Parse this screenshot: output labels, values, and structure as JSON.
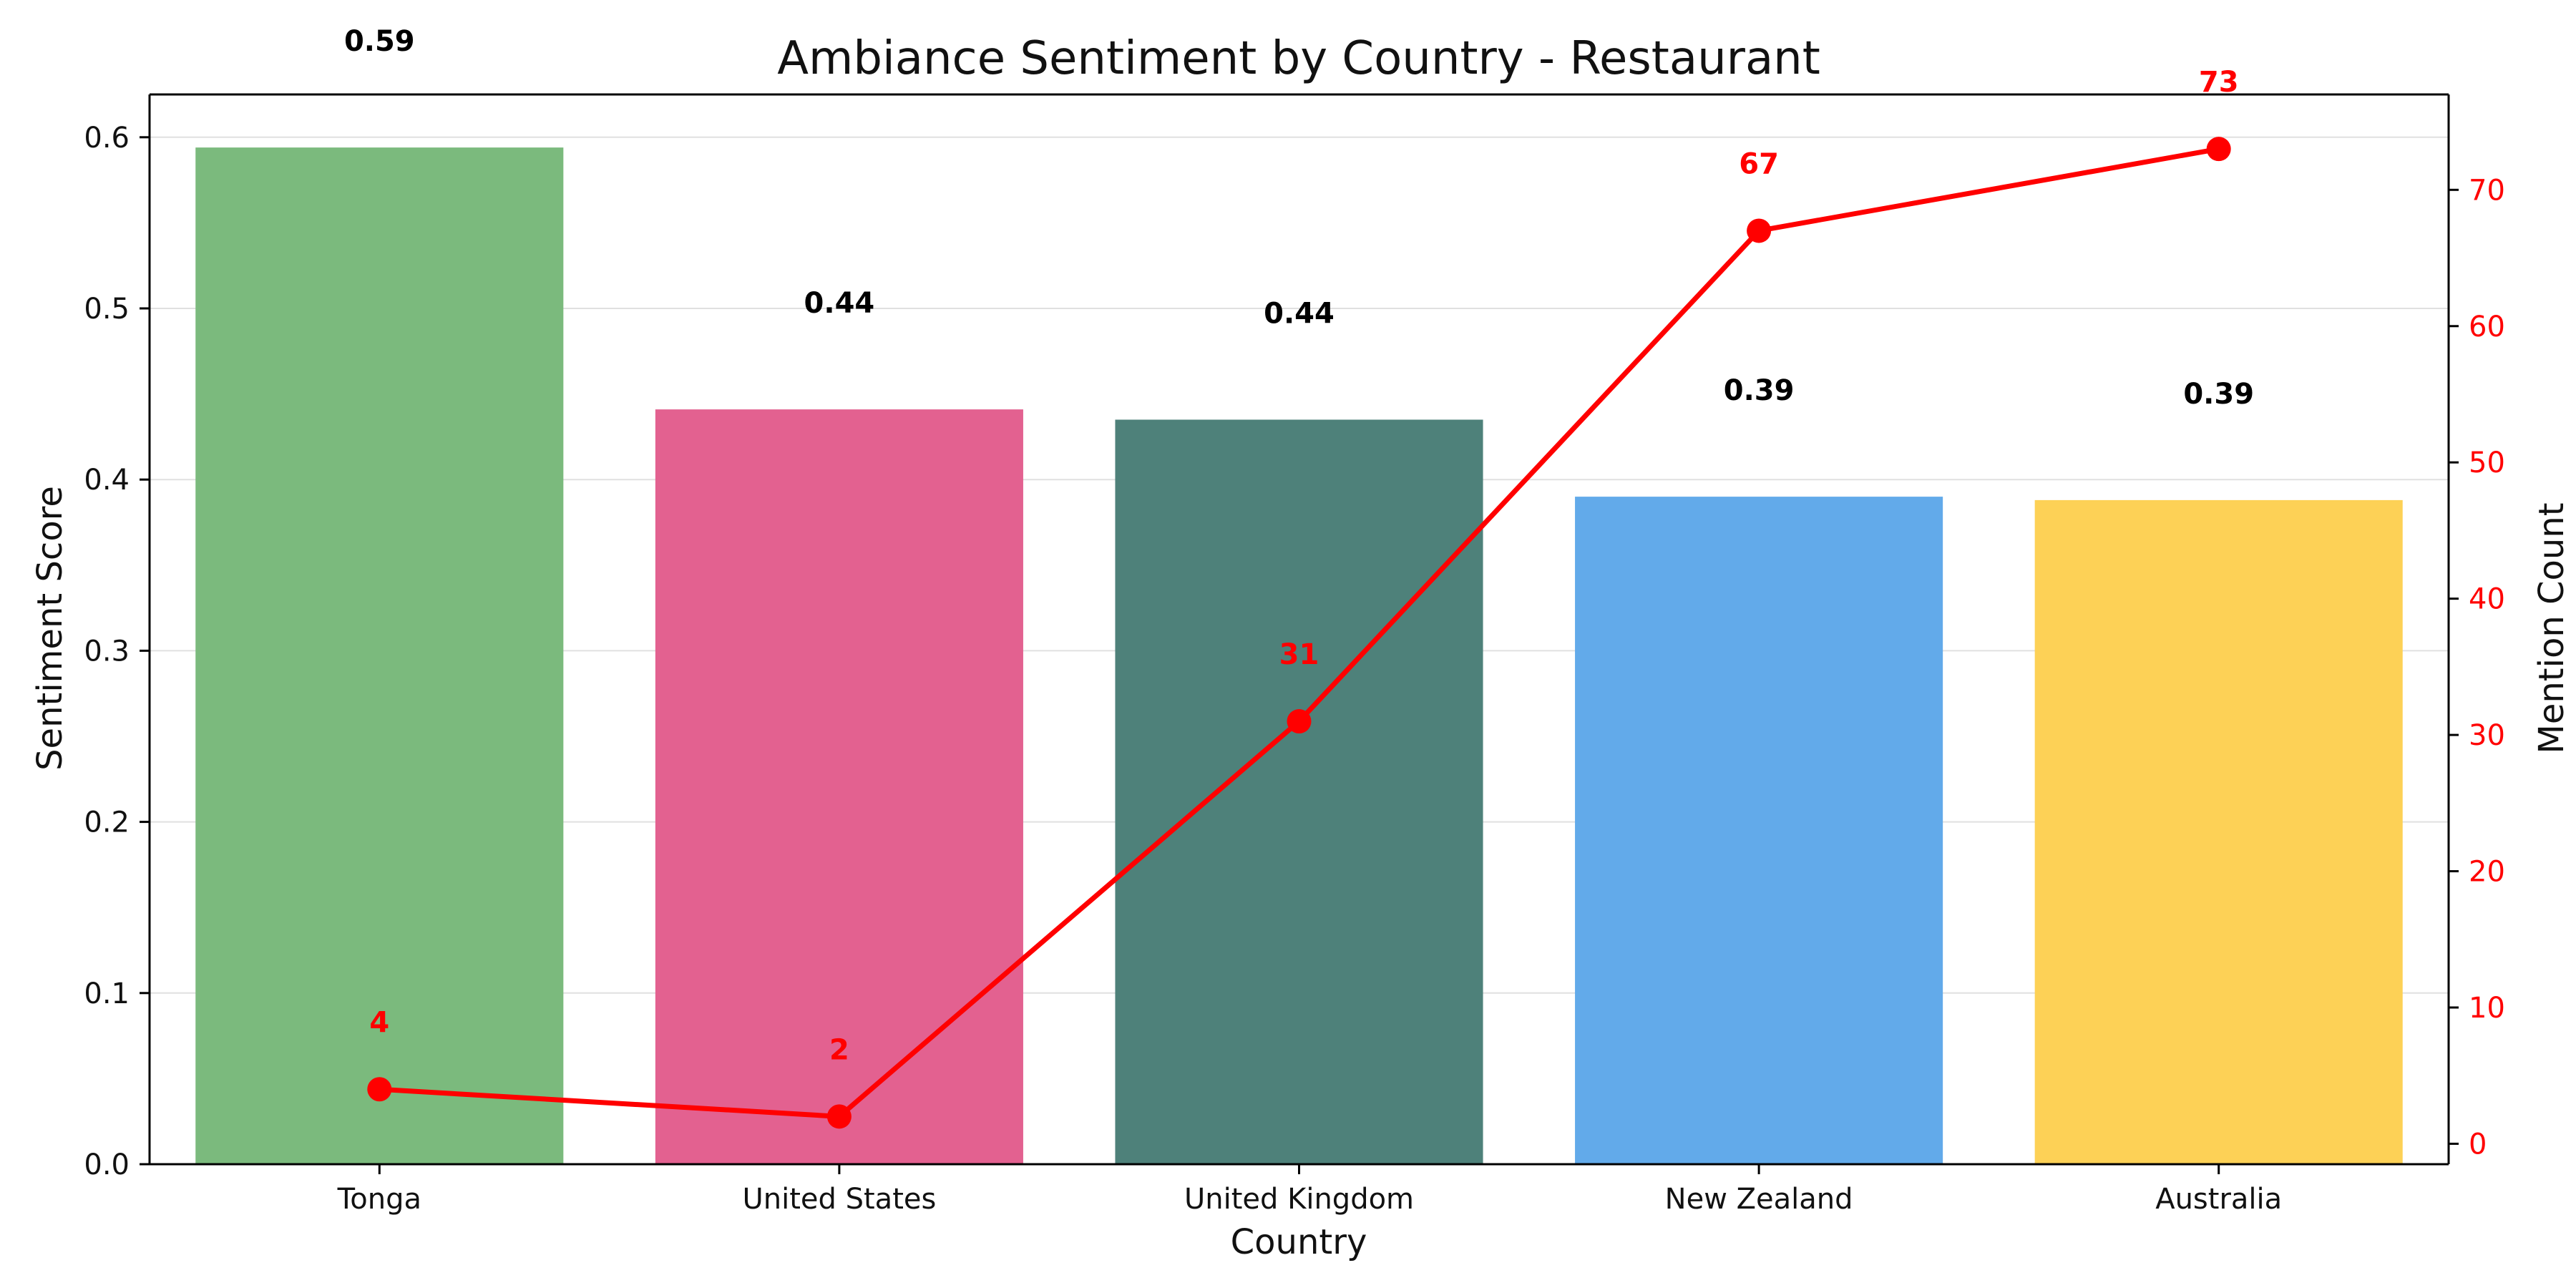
{
  "chart_data": {
    "type": "bar",
    "title": "Ambiance Sentiment by Country - Restaurant",
    "xlabel": "Country",
    "ylabel": "Sentiment Score",
    "y2label": "Mention Count",
    "categories": [
      "Tonga",
      "United States",
      "United Kingdom",
      "New Zealand",
      "Australia"
    ],
    "series": [
      {
        "type": "bar",
        "values": [
          0.594,
          0.441,
          0.435,
          0.39,
          0.388
        ],
        "labels": [
          "0.59",
          "0.44",
          "0.44",
          "0.39",
          "0.39"
        ],
        "colors": [
          "#7bba7d",
          "#e36190",
          "#4e817a",
          "#62aaea",
          "#fdd156"
        ]
      },
      {
        "type": "line",
        "axis": "right",
        "values": [
          4,
          2,
          31,
          67,
          73
        ],
        "labels": [
          "4",
          "2",
          "31",
          "67",
          "73"
        ],
        "color": "#ff0000"
      }
    ],
    "ylim": [
      0,
      0.625
    ],
    "y2lim": [
      -1.5,
      77
    ],
    "yticks": [
      0.0,
      0.1,
      0.2,
      0.3,
      0.4,
      0.5,
      0.6
    ],
    "ytick_labels": [
      "0.0",
      "0.1",
      "0.2",
      "0.3",
      "0.4",
      "0.5",
      "0.6"
    ],
    "y2ticks": [
      0,
      10,
      20,
      30,
      40,
      50,
      60,
      70
    ],
    "y2tick_labels": [
      "0",
      "10",
      "20",
      "30",
      "40",
      "50",
      "60",
      "70"
    ],
    "grid": true,
    "legend": "none"
  },
  "colors": {
    "axis": "#000000",
    "grid": "#e0e0e0",
    "line_accent": "#ff0000"
  }
}
